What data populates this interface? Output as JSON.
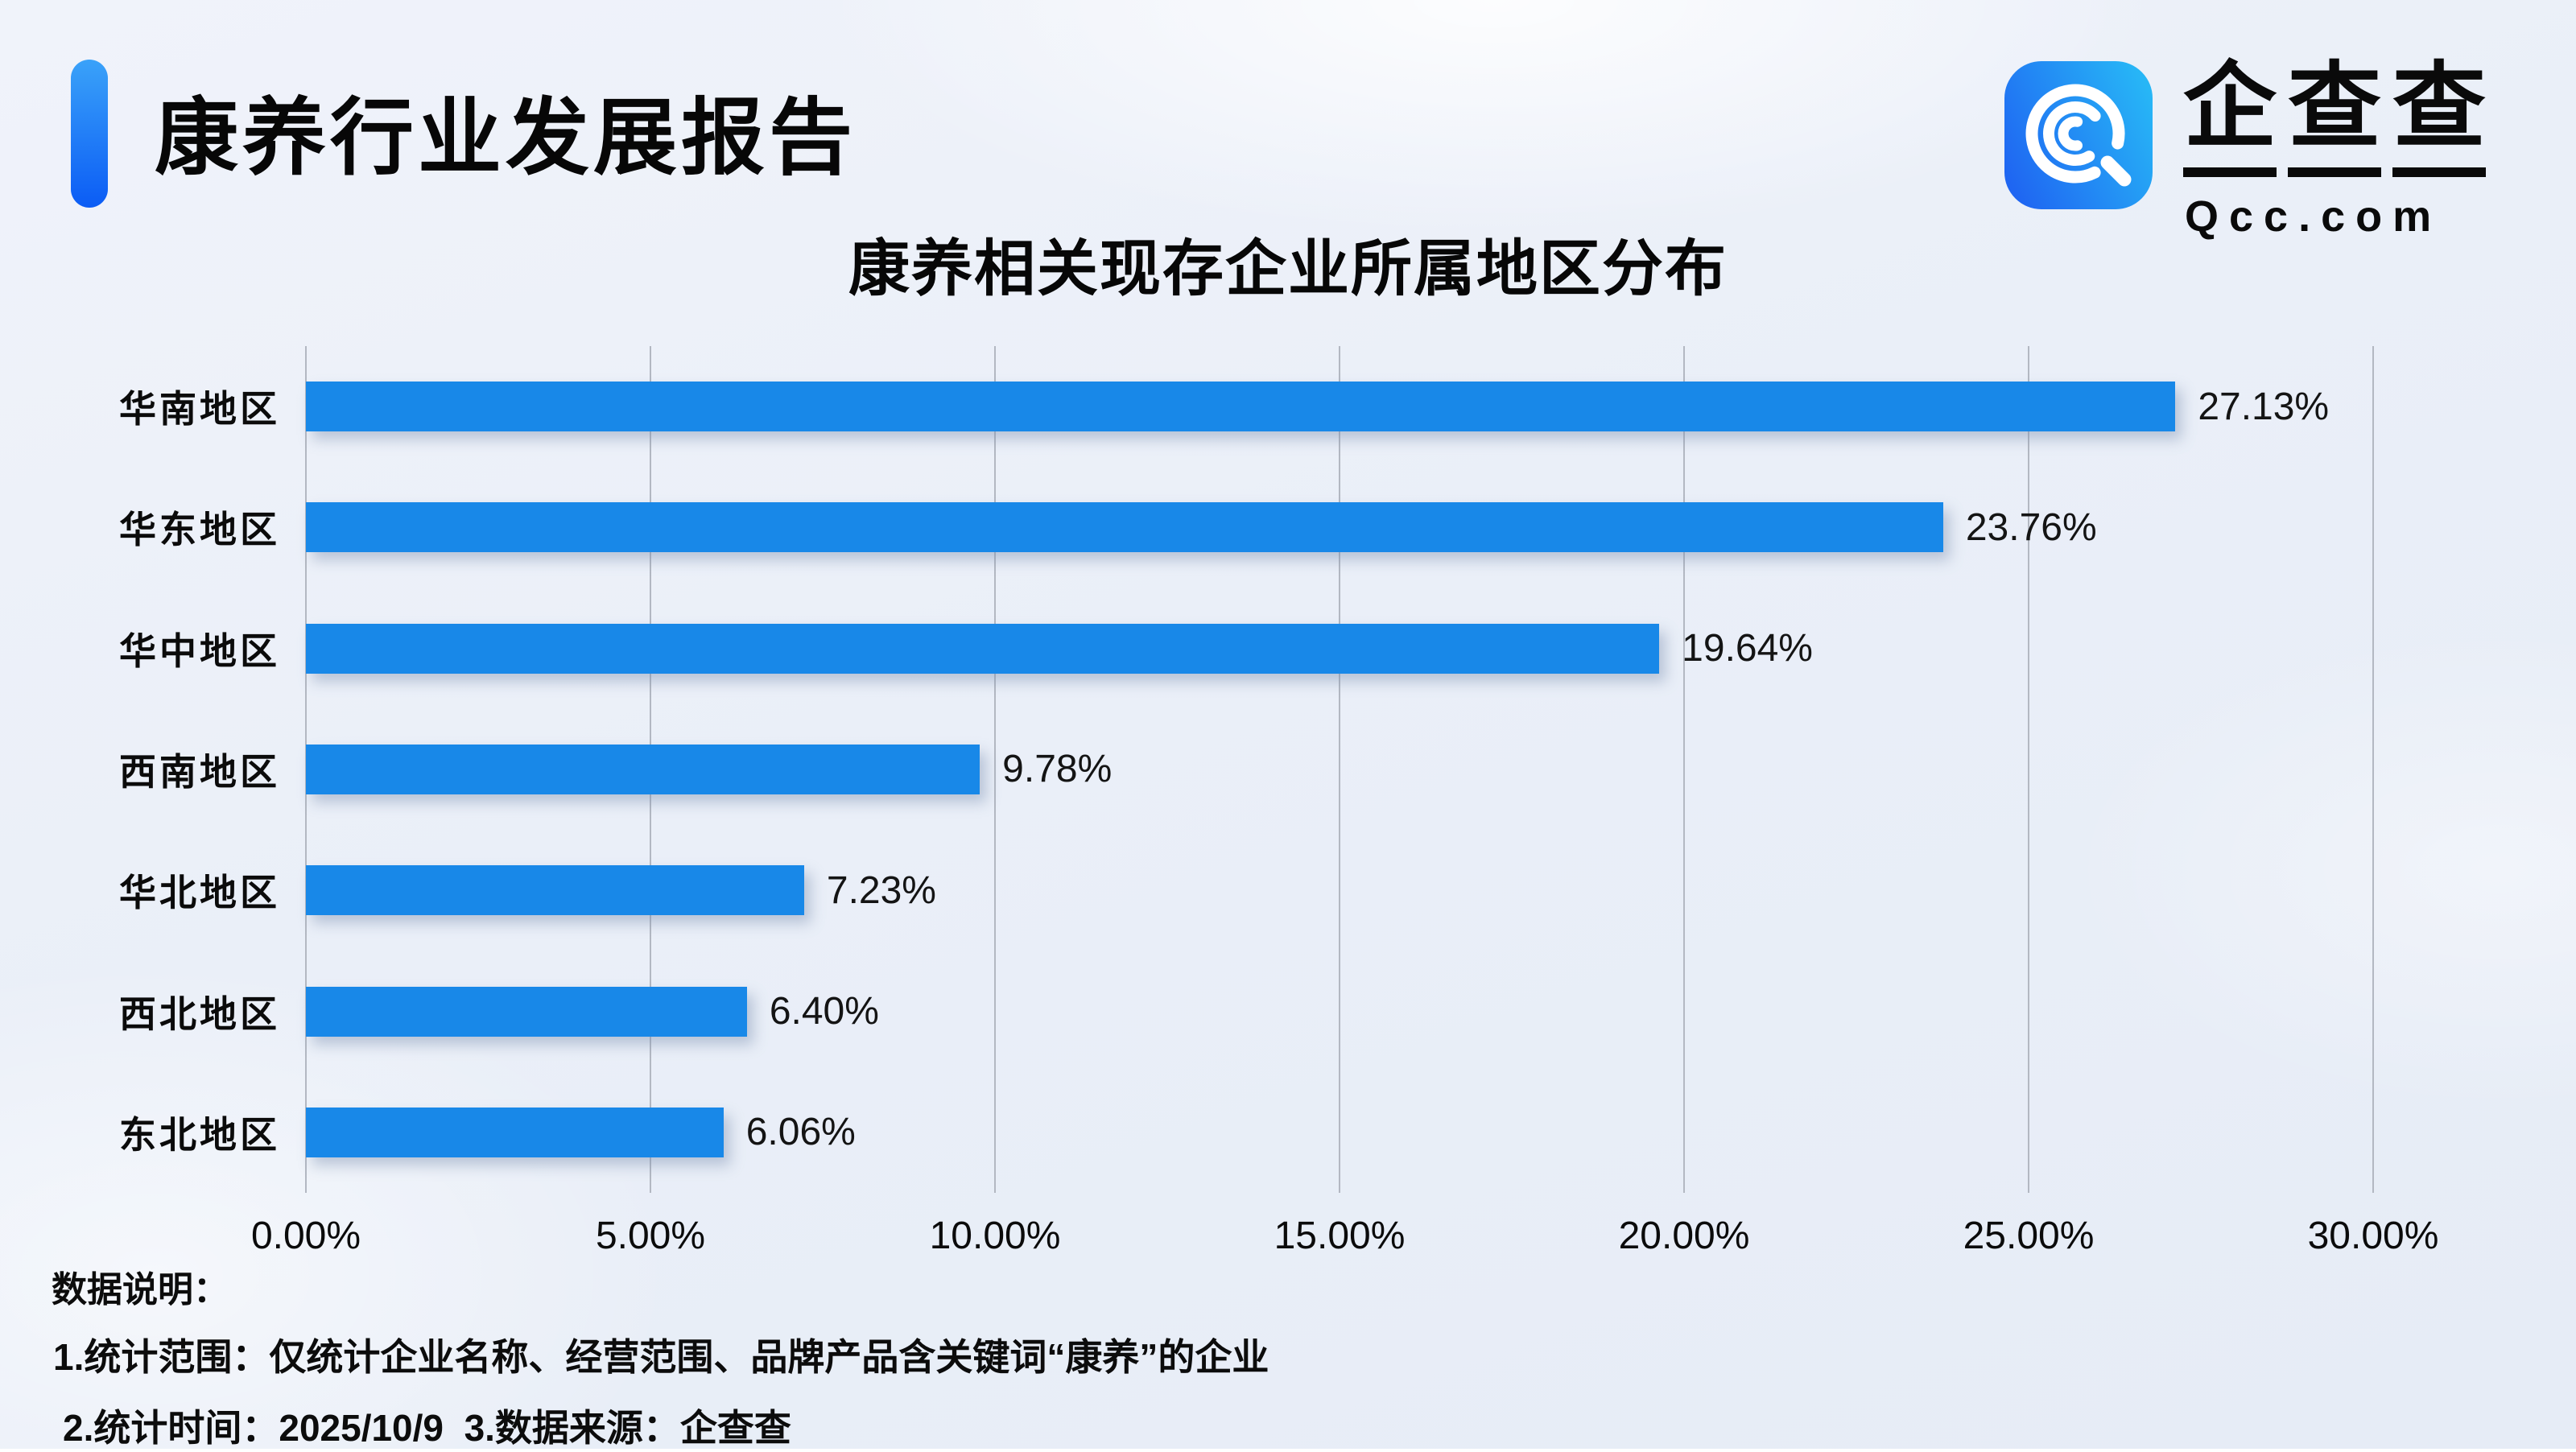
{
  "header": {
    "title": "康养行业发展报告"
  },
  "logo": {
    "brand_cn": "企查查",
    "brand_en": "Qcc.com",
    "icon": "qcc-magnifier-icon"
  },
  "chart_data": {
    "type": "bar",
    "orientation": "horizontal",
    "title": "康养相关现存企业所属地区分布",
    "categories": [
      "华南地区",
      "华东地区",
      "华中地区",
      "西南地区",
      "华北地区",
      "西北地区",
      "东北地区"
    ],
    "values": [
      27.13,
      23.76,
      19.64,
      9.78,
      7.23,
      6.4,
      6.06
    ],
    "value_labels": [
      "27.13%",
      "23.76%",
      "19.64%",
      "9.78%",
      "7.23%",
      "6.40%",
      "6.06%"
    ],
    "xlim": [
      0,
      30
    ],
    "x_tick_values": [
      0,
      5,
      10,
      15,
      20,
      25,
      30
    ],
    "x_ticks": [
      "0.00%",
      "5.00%",
      "10.00%",
      "15.00%",
      "20.00%",
      "25.00%",
      "30.00%"
    ],
    "grid": "vertical-only",
    "legend": "none",
    "bar_color": "#1888e8"
  },
  "footer": {
    "heading": "数据说明：",
    "note1": "1.统计范围：仅统计企业名称、经营范围、品牌产品含关键词“康养”的企业",
    "note2": "2.统计时间：2025/10/9  3.数据来源：企查查"
  },
  "colors": {
    "bar": "#1888e8",
    "accent_bar_top": "#3aa2f9",
    "accent_bar_bottom": "#0b5cf5",
    "logo_gradient_left": "#1f66f2",
    "logo_gradient_right": "#27b6f6",
    "gridline": "#b3b8c2",
    "text": "#0c0c0c",
    "background": "#eaeff8"
  }
}
